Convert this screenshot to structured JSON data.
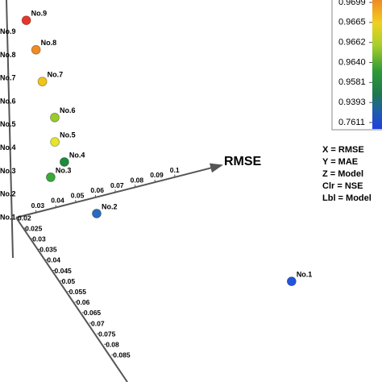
{
  "chart_data": {
    "type": "scatter3d",
    "x_axis_title": "RMSE",
    "legend_lines": [
      "X = RMSE",
      "Y = MAE",
      "Z = Model",
      "Clr = NSE",
      "Lbl = Model"
    ],
    "xticks": [
      0.03,
      0.04,
      0.05,
      0.06,
      0.07,
      0.08,
      0.09,
      0.1
    ],
    "yticks": [
      0.02,
      0.025,
      0.03,
      0.035,
      0.04,
      0.045,
      0.05,
      0.055,
      0.06,
      0.065,
      0.07,
      0.075,
      0.08,
      0.085
    ],
    "zcategories": [
      "No.1",
      "No.2",
      "No.3",
      "No.4",
      "No.5",
      "No.6",
      "No.7",
      "No.8",
      "No.9"
    ],
    "colorbar_ticks": [
      0.9699,
      0.9665,
      0.9662,
      {
        "value": 0.964,
        "label": "0.9640"
      },
      0.9581,
      0.9393,
      0.7611
    ],
    "points": [
      {
        "label": "No.1",
        "rmse": 0.119,
        "mae": 0.074,
        "model": 1,
        "nse": 0.7611,
        "color": "#2255dd"
      },
      {
        "label": "No.2",
        "rmse": 0.0488,
        "mae": 0.036,
        "model": 2,
        "nse": 0.9393,
        "color": "#2a6bbf"
      },
      {
        "label": "No.3",
        "rmse": 0.033,
        "mae": 0.026,
        "model": 3,
        "nse": 0.962,
        "color": "#3aa83a"
      },
      {
        "label": "No.4",
        "rmse": 0.0365,
        "mae": 0.0306,
        "model": 4,
        "nse": 0.9581,
        "color": "#1e8a3c"
      },
      {
        "label": "No.5",
        "rmse": 0.0315,
        "mae": 0.0309,
        "model": 5,
        "nse": 0.9662,
        "color": "#e5e52a"
      },
      {
        "label": "No.6",
        "rmse": 0.0318,
        "mae": 0.0304,
        "model": 6,
        "nse": 0.965,
        "color": "#9acb2a"
      },
      {
        "label": "No.7",
        "rmse": 0.0303,
        "mae": 0.024,
        "model": 7,
        "nse": 0.9662,
        "color": "#f0c419"
      },
      {
        "label": "No.8",
        "rmse": 0.0301,
        "mae": 0.0199,
        "model": 8,
        "nse": 0.9665,
        "color": "#f08a24"
      },
      {
        "label": "No.9",
        "rmse": 0.0278,
        "mae": 0.0164,
        "model": 9,
        "nse": 0.9699,
        "color": "#e8352a"
      }
    ]
  }
}
